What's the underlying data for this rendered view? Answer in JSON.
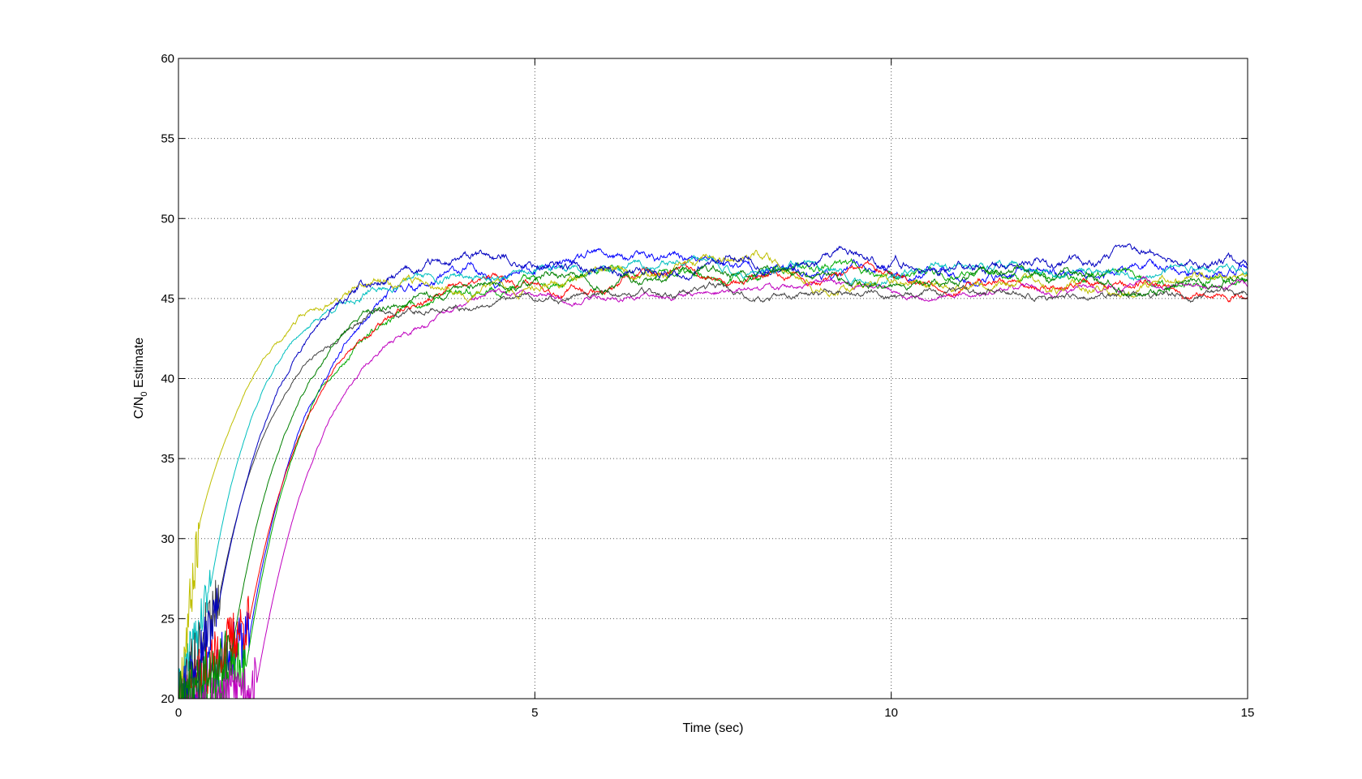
{
  "chart_data": {
    "type": "line",
    "title": "",
    "xlabel": "Time (sec)",
    "ylabel_main": "C/N",
    "ylabel_sub": "0",
    "ylabel_rest": " Estimate",
    "xlim": [
      0,
      15
    ],
    "ylim": [
      20,
      60
    ],
    "xticks": [
      0,
      5,
      10,
      15
    ],
    "yticks": [
      20,
      25,
      30,
      35,
      40,
      45,
      50,
      55,
      60
    ],
    "grid": true,
    "legend": "none",
    "series": [
      {
        "color": "#0000ff",
        "start": 1.0,
        "plateau": 46.8,
        "tau": 0.85,
        "noise": 0.3,
        "init": 24.0,
        "seed": 11
      },
      {
        "color": "#00aa00",
        "start": 0.95,
        "plateau": 46.4,
        "tau": 0.85,
        "noise": 0.28,
        "init": 22.0,
        "seed": 23
      },
      {
        "color": "#ff0000",
        "start": 1.0,
        "plateau": 46.1,
        "tau": 0.9,
        "noise": 0.25,
        "init": 25.0,
        "seed": 37
      },
      {
        "color": "#00bfbf",
        "start": 0.45,
        "plateau": 46.7,
        "tau": 0.75,
        "noise": 0.25,
        "init": 27.0,
        "seed": 41
      },
      {
        "color": "#bf00bf",
        "start": 1.1,
        "plateau": 45.6,
        "tau": 0.95,
        "noise": 0.2,
        "init": 21.0,
        "seed": 53
      },
      {
        "color": "#bfbf00",
        "start": 0.3,
        "plateau": 46.5,
        "tau": 0.85,
        "noise": 0.28,
        "init": 31.0,
        "seed": 67
      },
      {
        "color": "#404040",
        "start": 0.6,
        "plateau": 45.1,
        "tau": 0.8,
        "noise": 0.22,
        "init": 27.0,
        "seed": 79
      },
      {
        "color": "#0000c0",
        "start": 0.55,
        "plateau": 47.0,
        "tau": 0.85,
        "noise": 0.3,
        "init": 25.5,
        "seed": 97
      },
      {
        "color": "#008000",
        "start": 0.75,
        "plateau": 46.3,
        "tau": 0.85,
        "noise": 0.26,
        "init": 23.0,
        "seed": 89
      }
    ]
  }
}
